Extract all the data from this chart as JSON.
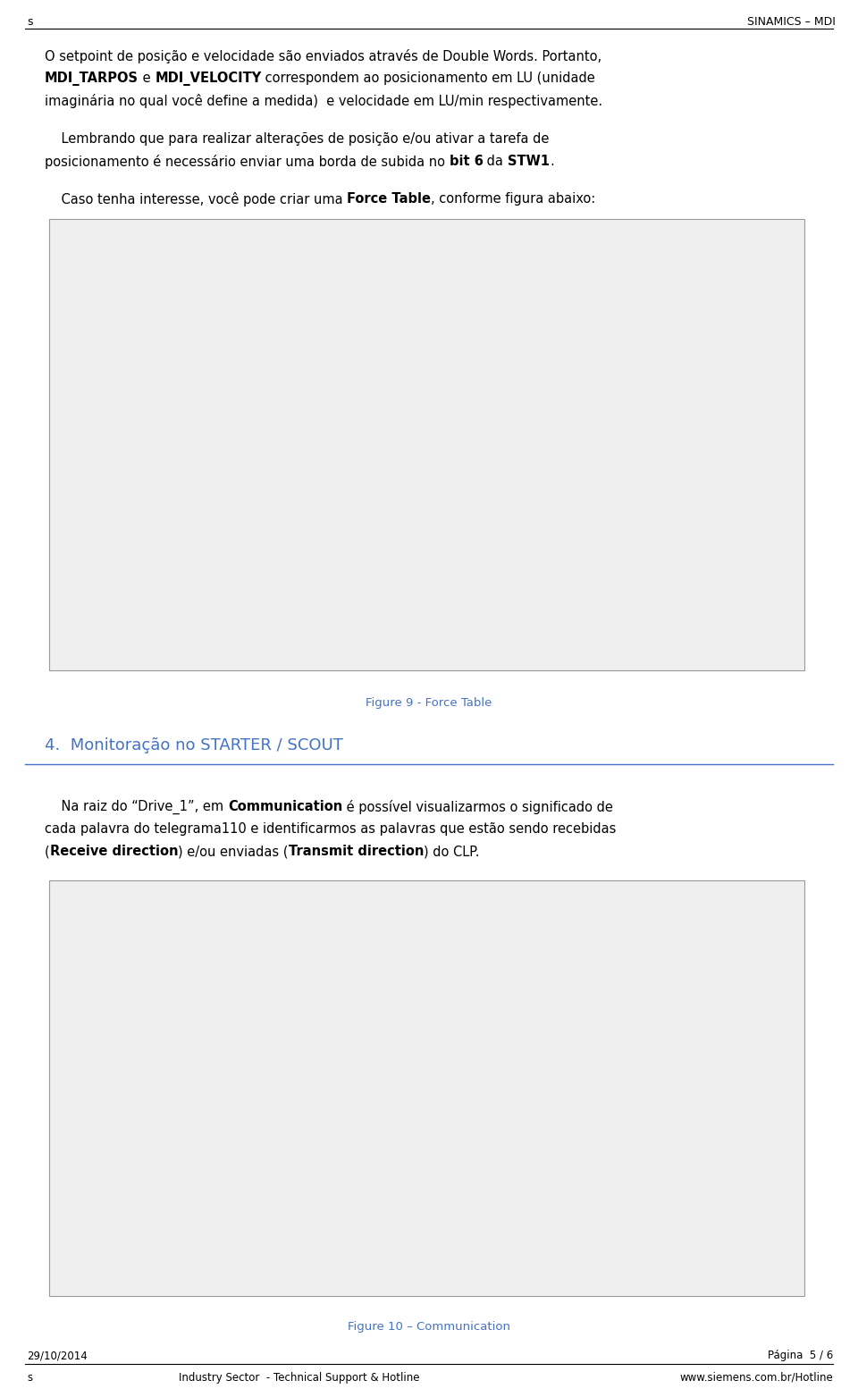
{
  "page_bg": "#ffffff",
  "header_left": "s",
  "header_right": "SINAMICS – MDI",
  "fig1_caption": "Figure 9 - Force Table",
  "fig2_caption": "Figure 10 – Communication",
  "section4_title": "4.  Monitoração no STARTER / SCOUT",
  "footer_date": "29/10/2014",
  "footer_page": "Página  5 / 6",
  "footer_left": "s",
  "footer_center": "Industry Sector  - Technical Support & Hotline",
  "footer_right": "www.siemens.com.br/Hotline",
  "accent_color": "#4472c4",
  "text_color": "#000000",
  "section_color": "#4472c4",
  "font_size_body": 10.5,
  "font_size_header": 9,
  "font_size_section": 13,
  "font_size_footer": 8.5,
  "font_size_caption": 9.5
}
